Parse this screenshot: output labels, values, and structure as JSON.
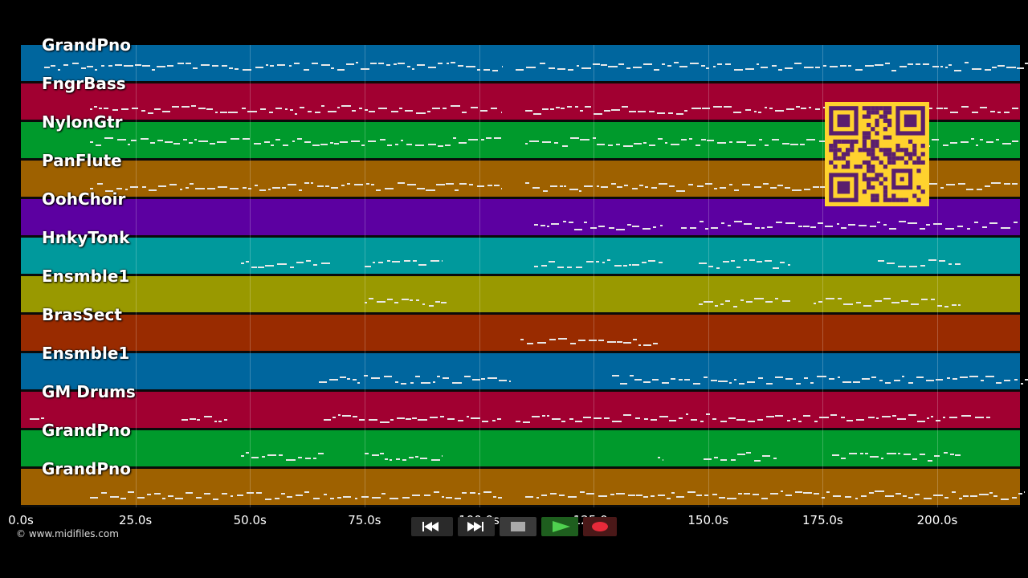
{
  "tracks": [
    {
      "name": "GrandPno",
      "color": "#00669e"
    },
    {
      "name": "FngrBass",
      "color": "#a10031"
    },
    {
      "name": "NylonGtr",
      "color": "#009a2c"
    },
    {
      "name": "PanFlute",
      "color": "#9e6100"
    },
    {
      "name": "OohChoir",
      "color": "#5c00a1"
    },
    {
      "name": "HnkyTonk",
      "color": "#00999c"
    },
    {
      "name": "Ensmble1",
      "color": "#999900"
    },
    {
      "name": "BrasSect",
      "color": "#992b00"
    },
    {
      "name": "Ensmble1",
      "color": "#00669e"
    },
    {
      "name": "GM Drums",
      "color": "#a10031"
    },
    {
      "name": "GrandPno",
      "color": "#009a2c"
    },
    {
      "name": "GrandPno",
      "color": "#9e6100"
    }
  ],
  "time_axis": {
    "ticks": [
      "0.0s",
      "25.0s",
      "50.0s",
      "75.0s",
      "100.0s",
      "125.0s",
      "150.0s",
      "175.0s",
      "200.0s"
    ],
    "tick_values": [
      0,
      25,
      50,
      75,
      100,
      125,
      150,
      175,
      200
    ],
    "max_seconds": 223
  },
  "credit": "© www.midifiles.com",
  "transport": {
    "buttons": [
      {
        "name": "rewind-button",
        "icon": "rewind-icon"
      },
      {
        "name": "fast-forward-button",
        "icon": "fast-forward-icon"
      },
      {
        "name": "stop-button",
        "icon": "stop-icon"
      },
      {
        "name": "play-button",
        "icon": "play-icon"
      },
      {
        "name": "record-button",
        "icon": "record-icon"
      }
    ]
  },
  "qr_code": {
    "icon": "qr-code-icon",
    "colors": {
      "fg": "#5a1e6e",
      "bg": "#ffd22e"
    }
  },
  "note_activity": [
    [
      [
        5,
        105
      ],
      [
        108,
        222
      ]
    ],
    [
      [
        15,
        105
      ],
      [
        110,
        218
      ]
    ],
    [
      [
        15,
        105
      ],
      [
        110,
        218
      ]
    ],
    [
      [
        15,
        105
      ],
      [
        110,
        218
      ]
    ],
    [
      [
        112,
        140
      ],
      [
        144,
        218
      ]
    ],
    [
      [
        48,
        68
      ],
      [
        75,
        92
      ],
      [
        112,
        140
      ],
      [
        148,
        168
      ],
      [
        187,
        205
      ]
    ],
    [
      [
        75,
        93
      ],
      [
        148,
        168
      ],
      [
        173,
        205
      ]
    ],
    [
      [
        109,
        139
      ]
    ],
    [
      [
        65,
        107
      ],
      [
        129,
        220
      ]
    ],
    [
      [
        2,
        5
      ],
      [
        35,
        45
      ],
      [
        66,
        105
      ],
      [
        108,
        212
      ]
    ],
    [
      [
        48,
        66
      ],
      [
        75,
        92
      ],
      [
        139,
        140
      ],
      [
        149,
        165
      ],
      [
        177,
        205
      ]
    ],
    [
      [
        15,
        105
      ],
      [
        110,
        219
      ]
    ]
  ]
}
